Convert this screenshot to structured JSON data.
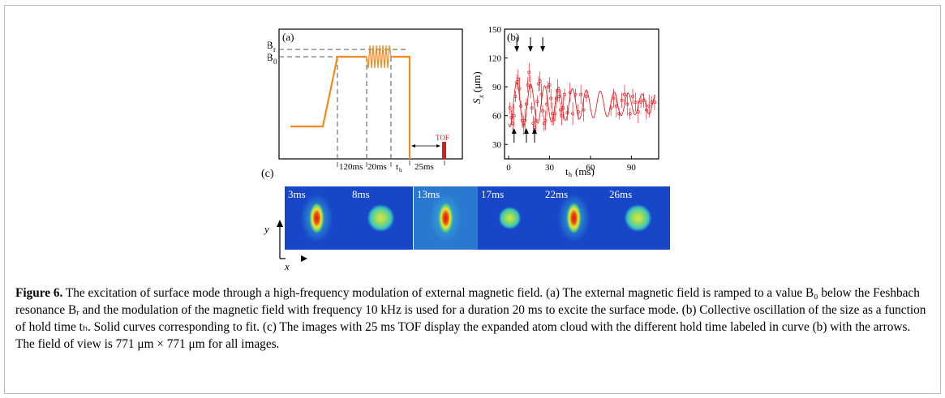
{
  "figure": {
    "panel_a": {
      "label": "(a)",
      "B_r_label": "B",
      "B_r_sub": "r",
      "B_0_label": "B",
      "B_0_sub": "0",
      "tof_label": "TOF",
      "segments": [
        "120ms",
        "20ms",
        "t",
        "25ms"
      ],
      "t_h_sub": "h",
      "colors": {
        "ramp": "#f08a1e",
        "tof": "#cc1f1f",
        "dash": "#555555"
      }
    },
    "panel_b": {
      "label": "(b)",
      "ylabel_main": "S",
      "ylabel_sub": "x",
      "ylabel_unit": "(μm)",
      "xlabel_main": "t",
      "xlabel_sub": "h",
      "xlabel_unit": "(ms)",
      "color": "#e0242a"
    },
    "panel_c": {
      "label": "(c)",
      "axis_y": "y",
      "axis_x": "x",
      "images": [
        {
          "label": "3ms",
          "shape": "elongated",
          "bg": "#1846c8"
        },
        {
          "label": "8ms",
          "shape": "round",
          "bg": "#1846c8"
        },
        {
          "label": "13ms",
          "shape": "elongated",
          "bg": "#2a78d0"
        },
        {
          "label": "17ms",
          "shape": "round-small",
          "bg": "#1846c8"
        },
        {
          "label": "22ms",
          "shape": "elongated",
          "bg": "#1846c8"
        },
        {
          "label": "26ms",
          "shape": "round",
          "bg": "#1846c8"
        }
      ]
    }
  },
  "chart_data": {
    "type": "scatter",
    "title": "",
    "xlabel": "th (ms)",
    "ylabel": "Sx (μm)",
    "xlim": [
      -3,
      110
    ],
    "ylim": [
      15,
      150
    ],
    "xticks": [
      0,
      30,
      60,
      90
    ],
    "yticks": [
      30,
      60,
      90,
      120,
      150
    ],
    "grid": false,
    "series": [
      {
        "x": [
          1,
          2,
          3,
          4,
          5,
          6,
          7,
          8,
          9,
          10,
          11,
          12,
          13,
          14,
          15,
          16,
          17,
          18,
          19,
          20,
          21,
          22,
          23,
          24,
          25,
          26,
          27,
          28,
          29,
          30,
          31,
          32,
          33,
          34,
          35,
          36,
          37,
          38,
          39,
          40,
          41,
          43,
          45,
          47,
          49,
          51,
          53,
          55,
          57,
          75,
          77,
          79,
          81,
          83,
          85,
          87,
          89,
          91,
          93,
          95,
          97,
          99,
          101,
          103,
          105,
          107
        ],
        "y": [
          68,
          58,
          52,
          60,
          80,
          95,
          98,
          88,
          70,
          55,
          50,
          55,
          72,
          92,
          105,
          90,
          68,
          52,
          48,
          55,
          75,
          93,
          96,
          82,
          65,
          52,
          55,
          72,
          90,
          92,
          78,
          62,
          56,
          62,
          78,
          86,
          80,
          66,
          60,
          68,
          82,
          63,
          84,
          62,
          82,
          64,
          82,
          66,
          80,
          68,
          78,
          70,
          62,
          76,
          82,
          72,
          62,
          80,
          74,
          64,
          74,
          76,
          66,
          70,
          74,
          74
        ]
      }
    ],
    "arrows_down_x": [
      6,
      16,
      25
    ],
    "arrows_up_x": [
      4,
      13,
      19
    ],
    "fit_note": ""
  },
  "caption": {
    "prefix": "Figure 6.",
    "text": " The excitation of surface mode through a high-frequency modulation of external magnetic field. (a) The external magnetic field is ramped to a value B₀ below the Feshbach resonance Bᵣ and the modulation of the magnetic field with frequency 10 kHz is used for a duration 20 ms to excite the surface mode. (b) Collective oscillation of the size as a function of hold time tₕ. Solid curves corresponding to fit. (c) The images with 25 ms TOF display the expanded atom cloud with the different hold time labeled in curve (b) with the arrows. The field of view is 771 μm × 771 μm for all images."
  }
}
